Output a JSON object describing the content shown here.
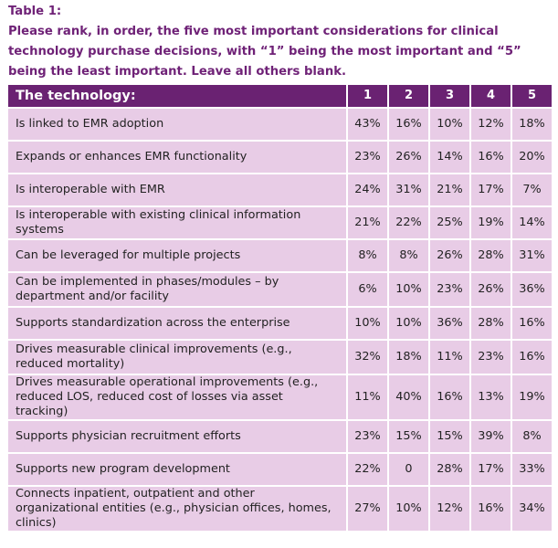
{
  "caption": {
    "title": "Table 1:",
    "text": "Please rank, in order, the five most important considerations for clinical technology purchase decisions, with “1” being the most important and “5” being the least important. Leave all others blank."
  },
  "colors": {
    "header_bg": "#6a2272",
    "row_bg": "#e8cce6",
    "caption": "#6f2277"
  },
  "table": {
    "header": [
      "The technology:",
      "1",
      "2",
      "3",
      "4",
      "5"
    ],
    "rows": [
      {
        "label": "Is linked to EMR adoption",
        "values": [
          "43%",
          "16%",
          "10%",
          "12%",
          "18%"
        ]
      },
      {
        "label": "Expands or enhances EMR functionality",
        "values": [
          "23%",
          "26%",
          "14%",
          "16%",
          "20%"
        ]
      },
      {
        "label": "Is interoperable with EMR",
        "values": [
          "24%",
          "31%",
          "21%",
          "17%",
          "7%"
        ]
      },
      {
        "label": "Is interoperable with existing clinical information systems",
        "values": [
          "21%",
          "22%",
          "25%",
          "19%",
          "14%"
        ]
      },
      {
        "label": "Can be leveraged for multiple projects",
        "values": [
          "8%",
          "8%",
          "26%",
          "28%",
          "31%"
        ]
      },
      {
        "label": "Can be implemented in phases/modules – by department and/or facility",
        "values": [
          "6%",
          "10%",
          "23%",
          "26%",
          "36%"
        ]
      },
      {
        "label": "Supports standardization across the enterprise",
        "values": [
          "10%",
          "10%",
          "36%",
          "28%",
          "16%"
        ]
      },
      {
        "label": "Drives measurable clinical improvements (e.g., reduced mortality)",
        "values": [
          "32%",
          "18%",
          "11%",
          "23%",
          "16%"
        ]
      },
      {
        "label": "Drives measurable operational improvements (e.g., reduced LOS, reduced cost of losses via asset tracking)",
        "values": [
          "11%",
          "40%",
          "16%",
          "13%",
          "19%"
        ]
      },
      {
        "label": "Supports physician recruitment efforts",
        "values": [
          "23%",
          "15%",
          "15%",
          "39%",
          "8%"
        ]
      },
      {
        "label": "Supports new program development",
        "values": [
          "22%",
          "0",
          "28%",
          "17%",
          "33%"
        ]
      },
      {
        "label": "Connects inpatient, outpatient and other organizational entities (e.g., physician offices, homes, clinics)",
        "values": [
          "27%",
          "10%",
          "12%",
          "16%",
          "34%"
        ]
      }
    ]
  }
}
